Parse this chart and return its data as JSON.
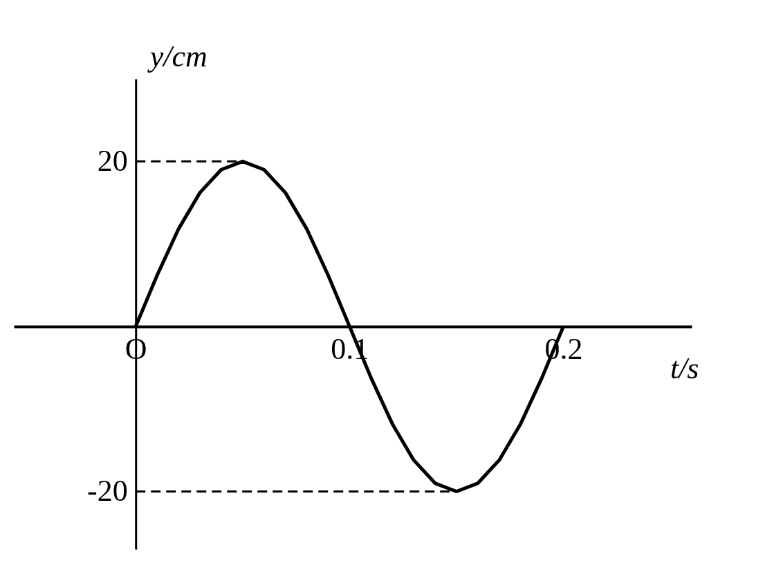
{
  "chart_data": {
    "type": "line",
    "xlabel": "t/s",
    "ylabel": "y/cm",
    "x": [
      0,
      0.01,
      0.02,
      0.03,
      0.04,
      0.05,
      0.06,
      0.07,
      0.08,
      0.09,
      0.1,
      0.11,
      0.12,
      0.13,
      0.14,
      0.15,
      0.16,
      0.17,
      0.18,
      0.19,
      0.2
    ],
    "series": [
      {
        "color": "#000000",
        "values": [
          0,
          6.2,
          11.8,
          16.2,
          19,
          20,
          19,
          16.2,
          11.8,
          6.2,
          0,
          -6.2,
          -11.8,
          -16.2,
          -19,
          -20,
          -19,
          -16.2,
          -11.8,
          -6.2,
          0
        ]
      }
    ],
    "xlim": [
      -0.057,
      0.26
    ],
    "ylim": [
      -27,
      30
    ],
    "xticks": [
      {
        "value": 0,
        "label": "O"
      },
      0.1,
      0.2
    ],
    "yticks": [
      -20,
      20
    ],
    "ref_lines": [
      {
        "axis": "y",
        "value": 20,
        "line_style": "dashed"
      },
      {
        "axis": "y",
        "value": -20,
        "line_style": "dashed"
      }
    ],
    "grid": false,
    "marker": "none",
    "line_style": "solid"
  }
}
